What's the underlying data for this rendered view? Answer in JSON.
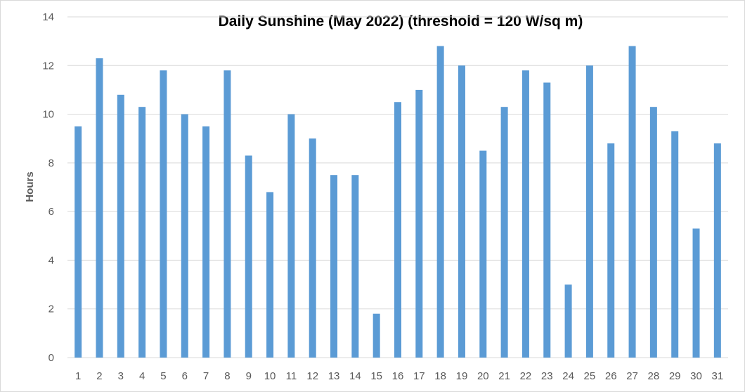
{
  "chart_data": {
    "type": "bar",
    "title": "Daily Sunshine (May 2022) (threshold = 120 W/sq m)",
    "xlabel": "",
    "ylabel": "Hours",
    "ylim": [
      0,
      14
    ],
    "yticks": [
      0,
      2,
      4,
      6,
      8,
      10,
      12,
      14
    ],
    "grid": true,
    "legend": "none",
    "bar_color": "#5b9bd5",
    "categories": [
      "1",
      "2",
      "3",
      "4",
      "5",
      "6",
      "7",
      "8",
      "9",
      "10",
      "11",
      "12",
      "13",
      "14",
      "15",
      "16",
      "17",
      "18",
      "19",
      "20",
      "21",
      "22",
      "23",
      "24",
      "25",
      "26",
      "27",
      "28",
      "29",
      "30",
      "31"
    ],
    "values": [
      9.5,
      12.3,
      10.8,
      10.3,
      11.8,
      10.0,
      9.5,
      11.8,
      8.3,
      6.8,
      10.0,
      9.0,
      7.5,
      7.5,
      1.8,
      10.5,
      11.0,
      12.8,
      12.0,
      8.5,
      10.3,
      11.8,
      11.3,
      3.0,
      12.0,
      8.8,
      12.8,
      10.3,
      9.3,
      5.3,
      8.8
    ]
  }
}
